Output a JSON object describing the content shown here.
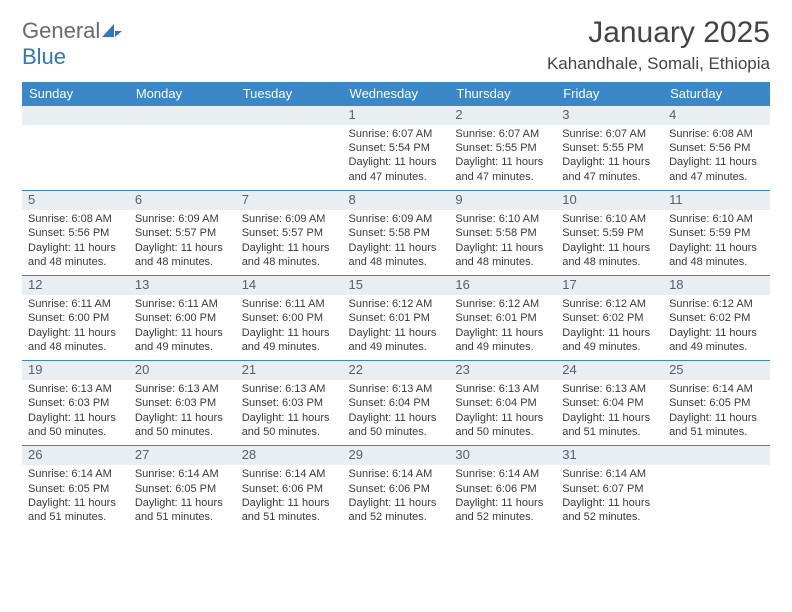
{
  "logo": {
    "text1": "General",
    "text2": "Blue"
  },
  "title": "January 2025",
  "location": "Kahandhale, Somali, Ethiopia",
  "day_headers": [
    "Sunday",
    "Monday",
    "Tuesday",
    "Wednesday",
    "Thursday",
    "Friday",
    "Saturday"
  ],
  "colors": {
    "header_bg": "#3b87c8",
    "header_text": "#ffffff",
    "daynum_bg": "#e9eef3",
    "daynum_text": "#58606a",
    "border": "#3b87c8",
    "logo_gray": "#6a6a6a",
    "logo_blue": "#2f78bd"
  },
  "weeks": [
    [
      {
        "n": "",
        "sr": "",
        "ss": "",
        "dl": ""
      },
      {
        "n": "",
        "sr": "",
        "ss": "",
        "dl": ""
      },
      {
        "n": "",
        "sr": "",
        "ss": "",
        "dl": ""
      },
      {
        "n": "1",
        "sr": "6:07 AM",
        "ss": "5:54 PM",
        "dl": "11 hours and 47 minutes."
      },
      {
        "n": "2",
        "sr": "6:07 AM",
        "ss": "5:55 PM",
        "dl": "11 hours and 47 minutes."
      },
      {
        "n": "3",
        "sr": "6:07 AM",
        "ss": "5:55 PM",
        "dl": "11 hours and 47 minutes."
      },
      {
        "n": "4",
        "sr": "6:08 AM",
        "ss": "5:56 PM",
        "dl": "11 hours and 47 minutes."
      }
    ],
    [
      {
        "n": "5",
        "sr": "6:08 AM",
        "ss": "5:56 PM",
        "dl": "11 hours and 48 minutes."
      },
      {
        "n": "6",
        "sr": "6:09 AM",
        "ss": "5:57 PM",
        "dl": "11 hours and 48 minutes."
      },
      {
        "n": "7",
        "sr": "6:09 AM",
        "ss": "5:57 PM",
        "dl": "11 hours and 48 minutes."
      },
      {
        "n": "8",
        "sr": "6:09 AM",
        "ss": "5:58 PM",
        "dl": "11 hours and 48 minutes."
      },
      {
        "n": "9",
        "sr": "6:10 AM",
        "ss": "5:58 PM",
        "dl": "11 hours and 48 minutes."
      },
      {
        "n": "10",
        "sr": "6:10 AM",
        "ss": "5:59 PM",
        "dl": "11 hours and 48 minutes."
      },
      {
        "n": "11",
        "sr": "6:10 AM",
        "ss": "5:59 PM",
        "dl": "11 hours and 48 minutes."
      }
    ],
    [
      {
        "n": "12",
        "sr": "6:11 AM",
        "ss": "6:00 PM",
        "dl": "11 hours and 48 minutes."
      },
      {
        "n": "13",
        "sr": "6:11 AM",
        "ss": "6:00 PM",
        "dl": "11 hours and 49 minutes."
      },
      {
        "n": "14",
        "sr": "6:11 AM",
        "ss": "6:00 PM",
        "dl": "11 hours and 49 minutes."
      },
      {
        "n": "15",
        "sr": "6:12 AM",
        "ss": "6:01 PM",
        "dl": "11 hours and 49 minutes."
      },
      {
        "n": "16",
        "sr": "6:12 AM",
        "ss": "6:01 PM",
        "dl": "11 hours and 49 minutes."
      },
      {
        "n": "17",
        "sr": "6:12 AM",
        "ss": "6:02 PM",
        "dl": "11 hours and 49 minutes."
      },
      {
        "n": "18",
        "sr": "6:12 AM",
        "ss": "6:02 PM",
        "dl": "11 hours and 49 minutes."
      }
    ],
    [
      {
        "n": "19",
        "sr": "6:13 AM",
        "ss": "6:03 PM",
        "dl": "11 hours and 50 minutes."
      },
      {
        "n": "20",
        "sr": "6:13 AM",
        "ss": "6:03 PM",
        "dl": "11 hours and 50 minutes."
      },
      {
        "n": "21",
        "sr": "6:13 AM",
        "ss": "6:03 PM",
        "dl": "11 hours and 50 minutes."
      },
      {
        "n": "22",
        "sr": "6:13 AM",
        "ss": "6:04 PM",
        "dl": "11 hours and 50 minutes."
      },
      {
        "n": "23",
        "sr": "6:13 AM",
        "ss": "6:04 PM",
        "dl": "11 hours and 50 minutes."
      },
      {
        "n": "24",
        "sr": "6:13 AM",
        "ss": "6:04 PM",
        "dl": "11 hours and 51 minutes."
      },
      {
        "n": "25",
        "sr": "6:14 AM",
        "ss": "6:05 PM",
        "dl": "11 hours and 51 minutes."
      }
    ],
    [
      {
        "n": "26",
        "sr": "6:14 AM",
        "ss": "6:05 PM",
        "dl": "11 hours and 51 minutes."
      },
      {
        "n": "27",
        "sr": "6:14 AM",
        "ss": "6:05 PM",
        "dl": "11 hours and 51 minutes."
      },
      {
        "n": "28",
        "sr": "6:14 AM",
        "ss": "6:06 PM",
        "dl": "11 hours and 51 minutes."
      },
      {
        "n": "29",
        "sr": "6:14 AM",
        "ss": "6:06 PM",
        "dl": "11 hours and 52 minutes."
      },
      {
        "n": "30",
        "sr": "6:14 AM",
        "ss": "6:06 PM",
        "dl": "11 hours and 52 minutes."
      },
      {
        "n": "31",
        "sr": "6:14 AM",
        "ss": "6:07 PM",
        "dl": "11 hours and 52 minutes."
      },
      {
        "n": "",
        "sr": "",
        "ss": "",
        "dl": ""
      }
    ]
  ],
  "labels": {
    "sunrise": "Sunrise:",
    "sunset": "Sunset:",
    "daylight": "Daylight:"
  }
}
